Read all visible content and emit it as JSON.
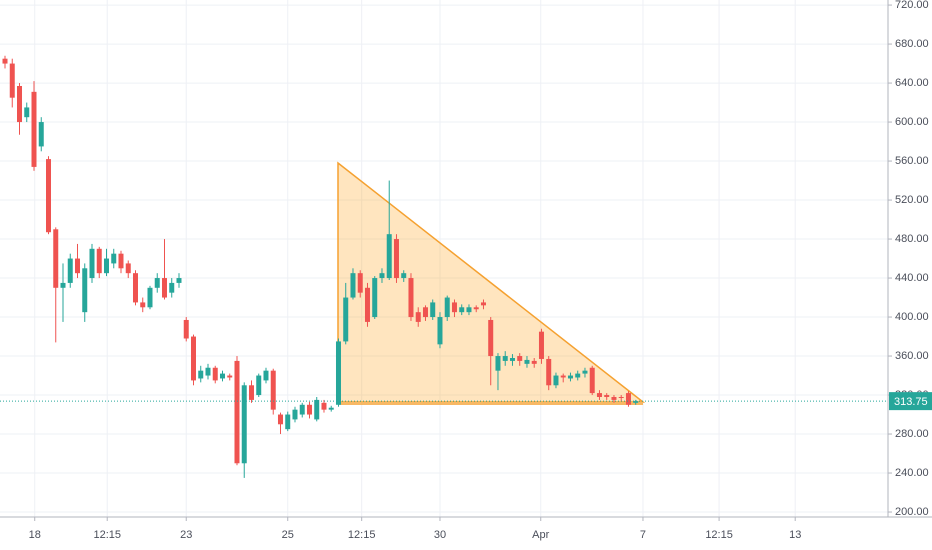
{
  "chart_data": {
    "type": "candlestick",
    "up_color": "#26a69a",
    "down_color": "#ef5350",
    "grid": true,
    "open": [
      665,
      660,
      637,
      605,
      631,
      575,
      562,
      490,
      430,
      435,
      460,
      405,
      440,
      470,
      445,
      455,
      465,
      455,
      445,
      415,
      410,
      430,
      440,
      425,
      435,
      397,
      380,
      337,
      340,
      348,
      337,
      340,
      355,
      250,
      330,
      320,
      335,
      345,
      300,
      285,
      295,
      300,
      310,
      295,
      312,
      305,
      310,
      375,
      420,
      445,
      430,
      400,
      440,
      440,
      480,
      440,
      440,
      405,
      410,
      400,
      372,
      400,
      415,
      405,
      405,
      410,
      415,
      397,
      345,
      355,
      355,
      360,
      352,
      355,
      385,
      357,
      330,
      340,
      337,
      338,
      342,
      348,
      322,
      320,
      318,
      318,
      322,
      312
    ],
    "high": [
      668,
      665,
      640,
      620,
      642,
      605,
      565,
      492,
      455,
      465,
      475,
      455,
      475,
      472,
      470,
      470,
      468,
      458,
      448,
      420,
      432,
      445,
      480,
      440,
      445,
      400,
      382,
      350,
      352,
      350,
      345,
      342,
      360,
      333,
      335,
      342,
      348,
      347,
      302,
      303,
      308,
      312,
      313,
      318,
      315,
      309,
      378,
      435,
      450,
      448,
      435,
      442,
      450,
      540,
      485,
      448,
      445,
      410,
      412,
      418,
      405,
      422,
      418,
      413,
      413,
      412,
      418,
      400,
      363,
      365,
      362,
      363,
      360,
      358,
      388,
      360,
      343,
      342,
      343,
      345,
      348,
      350,
      325,
      322,
      320,
      320,
      324,
      315
    ],
    "low": [
      655,
      615,
      587,
      600,
      550,
      570,
      485,
      374,
      395,
      430,
      440,
      395,
      435,
      440,
      442,
      450,
      445,
      440,
      412,
      405,
      408,
      425,
      418,
      420,
      430,
      375,
      330,
      333,
      336,
      332,
      334,
      335,
      248,
      235,
      312,
      318,
      332,
      300,
      280,
      283,
      292,
      297,
      296,
      293,
      302,
      303,
      308,
      372,
      418,
      420,
      390,
      398,
      435,
      438,
      435,
      436,
      396,
      390,
      396,
      397,
      368,
      396,
      400,
      402,
      402,
      405,
      408,
      330,
      325,
      350,
      350,
      350,
      348,
      348,
      352,
      325,
      327,
      333,
      334,
      335,
      338,
      320,
      315,
      315,
      312,
      314,
      308,
      310
    ],
    "close": [
      660,
      625,
      600,
      615,
      554,
      600,
      487,
      430,
      435,
      460,
      445,
      450,
      470,
      445,
      460,
      465,
      450,
      445,
      415,
      410,
      430,
      440,
      420,
      435,
      440,
      378,
      335,
      345,
      348,
      335,
      342,
      338,
      250,
      330,
      315,
      340,
      345,
      305,
      290,
      300,
      305,
      310,
      300,
      315,
      305,
      307,
      375,
      420,
      445,
      425,
      395,
      440,
      445,
      485,
      440,
      445,
      400,
      395,
      400,
      415,
      400,
      420,
      405,
      410,
      410,
      408,
      412,
      360,
      360,
      360,
      358,
      355,
      356,
      352,
      357,
      330,
      340,
      338,
      340,
      342,
      345,
      322,
      318,
      318,
      315,
      317,
      310,
      313.75
    ],
    "xlim": [
      -0.69,
      121.8
    ],
    "xticks": [
      {
        "value": 4.1,
        "label": "18"
      },
      {
        "value": 14.1,
        "label": "12:15"
      },
      {
        "value": 25,
        "label": "23"
      },
      {
        "value": 39,
        "label": "25"
      },
      {
        "value": 49.2,
        "label": "12:15"
      },
      {
        "value": 60,
        "label": "30"
      },
      {
        "value": 73.9,
        "label": "Apr"
      },
      {
        "value": 88,
        "label": "7"
      },
      {
        "value": 98.5,
        "label": "12:15"
      },
      {
        "value": 109,
        "label": "13"
      }
    ],
    "ylim": [
      194.9,
      725.2
    ],
    "yticks": [
      {
        "value": 200,
        "label": "200.00"
      },
      {
        "value": 240,
        "label": "240.00"
      },
      {
        "value": 280,
        "label": "280.00"
      },
      {
        "value": 320,
        "label": "320.00"
      },
      {
        "value": 360,
        "label": "360.00"
      },
      {
        "value": 400,
        "label": "400.00"
      },
      {
        "value": 440,
        "label": "440.00"
      },
      {
        "value": 480,
        "label": "480.00"
      },
      {
        "value": 520,
        "label": "520.00"
      },
      {
        "value": 560,
        "label": "560.00"
      },
      {
        "value": 600,
        "label": "600.00"
      },
      {
        "value": 640,
        "label": "640.00"
      },
      {
        "value": 680,
        "label": "680.00"
      },
      {
        "value": 720,
        "label": "720.00"
      }
    ],
    "last_price": 313.75
  }
}
